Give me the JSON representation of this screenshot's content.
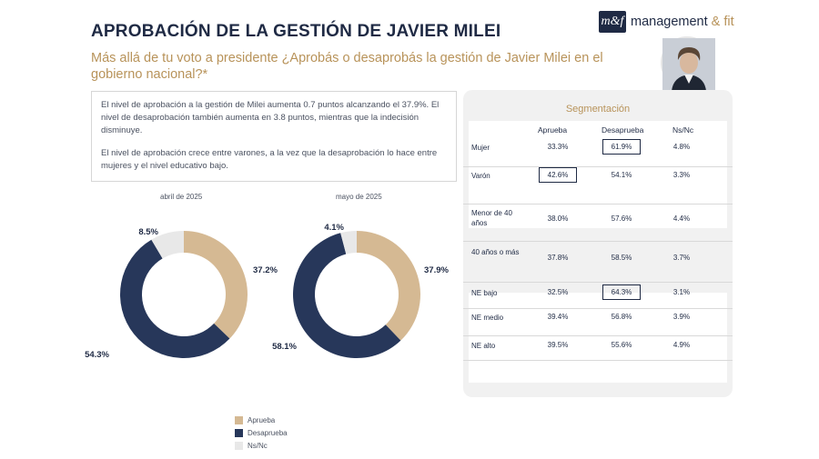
{
  "header": {
    "title": "APROBACIÓN DE LA GESTIÓN DE JAVIER MILEI",
    "subtitle": "Más allá de tu voto a presidente ¿Aprobás o desaprobás la gestión de Javier Milei en el gobierno nacional?*",
    "brand_mark": "m&f",
    "brand_name": "management",
    "brand_amp": " & fit"
  },
  "summary": {
    "p1": "El nivel de aprobación a la gestión de Milei aumenta 0.7 puntos alcanzando el 37.9%. El nivel de desaprobación también aumenta en 3.8 puntos, mientras que la indecisión disminuye.",
    "p2": "El nivel de aprobación crece entre varones, a la vez que la desaprobación lo hace entre mujeres y el nivel educativo bajo."
  },
  "colors": {
    "aprueba": "#d5b993",
    "desaprueba": "#27375a",
    "nsnc": "#e8e8e8",
    "accent": "#b8935a"
  },
  "chart_data": [
    {
      "type": "pie",
      "donut": true,
      "title": "abril de 2025",
      "categories": [
        "Aprueba",
        "Desaprueba",
        "Ns/Nc"
      ],
      "values": [
        37.2,
        54.3,
        8.5
      ],
      "labels": [
        "37.2%",
        "54.3%",
        "8.5%"
      ]
    },
    {
      "type": "pie",
      "donut": true,
      "title": "mayo de 2025",
      "categories": [
        "Aprueba",
        "Desaprueba",
        "Ns/Nc"
      ],
      "values": [
        37.9,
        58.1,
        4.1
      ],
      "labels": [
        "37.9%",
        "58.1%",
        "4.1%"
      ]
    },
    {
      "type": "table",
      "title": "Segmentación",
      "columns": [
        "",
        "Aprueba",
        "Desaprueba",
        "Ns/Nc"
      ],
      "rows": [
        {
          "label": "Mujer",
          "values": [
            "33.3%",
            "61.9%",
            "4.8%"
          ],
          "highlight": 1
        },
        {
          "label": "Varón",
          "values": [
            "42.6%",
            "54.1%",
            "3.3%"
          ],
          "highlight": 0
        },
        {
          "label": "Menor de 40 años",
          "values": [
            "38.0%",
            "57.6%",
            "4.4%"
          ],
          "highlight": -1
        },
        {
          "label": "40 años o más",
          "values": [
            "37.8%",
            "58.5%",
            "3.7%"
          ],
          "highlight": -1
        },
        {
          "label": "NE bajo",
          "values": [
            "32.5%",
            "64.3%",
            "3.1%"
          ],
          "highlight": 1
        },
        {
          "label": "NE medio",
          "values": [
            "39.4%",
            "56.8%",
            "3.9%"
          ],
          "highlight": -1
        },
        {
          "label": "NE alto",
          "values": [
            "39.5%",
            "55.6%",
            "4.9%"
          ],
          "highlight": -1
        }
      ]
    }
  ],
  "legend": [
    {
      "label": "Aprueba",
      "key": "aprueba"
    },
    {
      "label": "Desaprueba",
      "key": "desaprueba"
    },
    {
      "label": "Ns/Nc",
      "key": "nsnc"
    }
  ]
}
